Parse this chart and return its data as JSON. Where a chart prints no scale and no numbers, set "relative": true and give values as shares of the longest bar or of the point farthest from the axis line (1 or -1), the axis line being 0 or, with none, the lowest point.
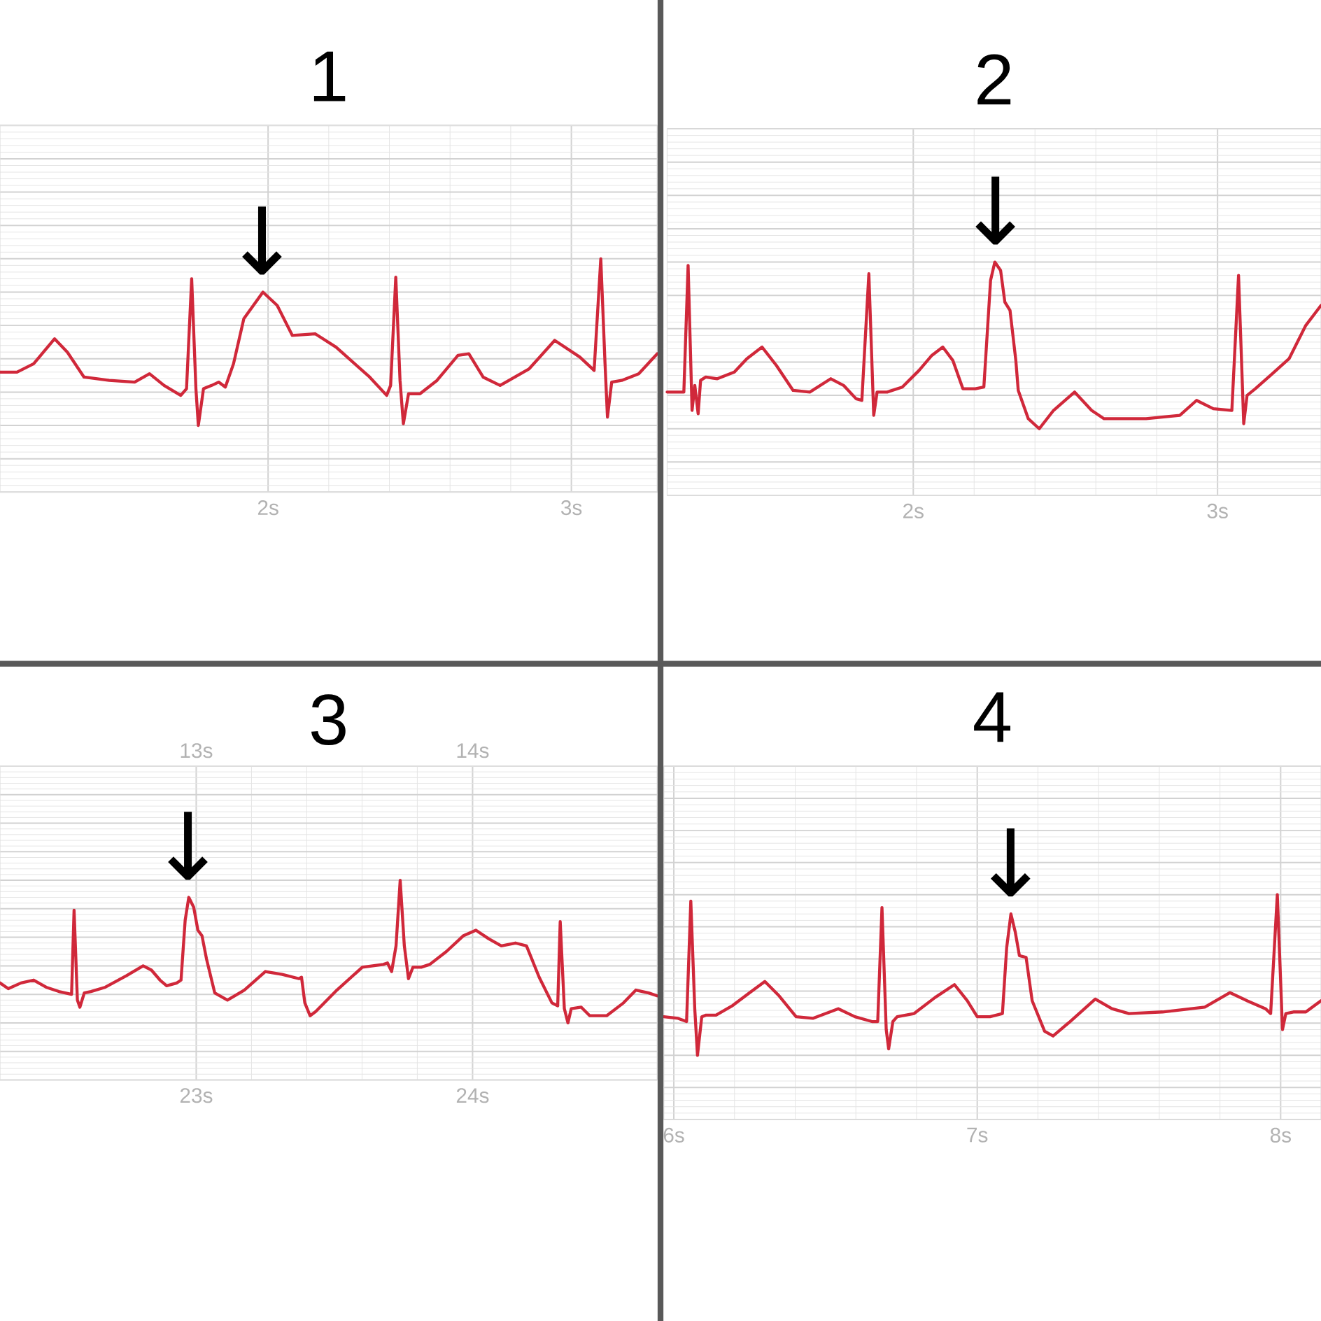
{
  "chart_data": [
    {
      "type": "line",
      "title": "1",
      "relative": true,
      "grid": true,
      "color": "#d0283a",
      "xlim": [
        1.116,
        3.283
      ],
      "xticks": [
        {
          "value": 2,
          "label": "2s"
        },
        {
          "value": 3,
          "label": "3s"
        }
      ],
      "annotations": [
        {
          "text": "↓",
          "x": 1.98,
          "y": 0.8
        }
      ],
      "x": [
        1.116,
        1.172,
        1.227,
        1.296,
        1.338,
        1.393,
        1.476,
        1.56,
        1.609,
        1.657,
        1.712,
        1.731,
        1.748,
        1.762,
        1.77,
        1.787,
        1.814,
        1.837,
        1.859,
        1.886,
        1.92,
        1.983,
        2.03,
        2.08,
        2.155,
        2.224,
        2.335,
        2.391,
        2.404,
        2.421,
        2.435,
        2.446,
        2.463,
        2.501,
        2.557,
        2.626,
        2.662,
        2.709,
        2.765,
        2.861,
        2.945,
        3.028,
        3.075,
        3.097,
        3.111,
        3.119,
        3.133,
        3.166,
        3.222,
        3.283
      ],
      "values": [
        0.32,
        0.32,
        0.37,
        0.52,
        0.44,
        0.29,
        0.27,
        0.26,
        0.31,
        0.24,
        0.18,
        0.22,
        0.88,
        0.22,
        0,
        0.22,
        0.24,
        0.26,
        0.23,
        0.37,
        0.64,
        0.8,
        0.72,
        0.54,
        0.55,
        0.47,
        0.29,
        0.18,
        0.24,
        0.89,
        0.27,
        0.01,
        0.19,
        0.19,
        0.27,
        0.42,
        0.43,
        0.29,
        0.24,
        0.34,
        0.51,
        0.41,
        0.33,
        1,
        0.37,
        0.05,
        0.26,
        0.27,
        0.31,
        0.43
      ]
    },
    {
      "type": "line",
      "title": "2",
      "relative": true,
      "grid": true,
      "color": "#d0283a",
      "xlim": [
        1.191,
        3.34
      ],
      "xticks": [
        {
          "value": 2,
          "label": "2s"
        },
        {
          "value": 3,
          "label": "3s"
        }
      ],
      "annotations": [
        {
          "text": "↓",
          "x": 2.27,
          "y": 1
        }
      ],
      "x": [
        1.191,
        1.232,
        1.246,
        1.26,
        1.273,
        1.282,
        1.293,
        1.301,
        1.318,
        1.356,
        1.412,
        1.453,
        1.503,
        1.55,
        1.605,
        1.66,
        1.729,
        1.771,
        1.812,
        1.831,
        1.854,
        1.87,
        1.881,
        1.914,
        1.964,
        2.019,
        2.061,
        2.097,
        2.13,
        2.163,
        2.204,
        2.232,
        2.254,
        2.268,
        2.287,
        2.301,
        2.318,
        2.337,
        2.345,
        2.378,
        2.414,
        2.461,
        2.53,
        2.586,
        2.627,
        2.765,
        2.876,
        2.931,
        2.986,
        3.047,
        3.069,
        3.086,
        3.097,
        3.124,
        3.18,
        3.235,
        3.29,
        3.34
      ],
      "values": [
        0.22,
        0.22,
        0.22,
        0.98,
        0.11,
        0.26,
        0.09,
        0.29,
        0.31,
        0.3,
        0.34,
        0.42,
        0.49,
        0.38,
        0.23,
        0.22,
        0.3,
        0.26,
        0.18,
        0.17,
        0.93,
        0.08,
        0.22,
        0.22,
        0.25,
        0.35,
        0.44,
        0.49,
        0.41,
        0.24,
        0.24,
        0.25,
        0.89,
        1,
        0.95,
        0.76,
        0.71,
        0.41,
        0.23,
        0.06,
        0,
        0.11,
        0.22,
        0.11,
        0.06,
        0.06,
        0.08,
        0.17,
        0.12,
        0.11,
        0.92,
        0.03,
        0.2,
        0.24,
        0.33,
        0.42,
        0.62,
        0.74
      ]
    },
    {
      "type": "line",
      "title": "3",
      "relative": true,
      "grid": true,
      "color": "#d0283a",
      "xlim": [
        22.29,
        24.668
      ],
      "xticks": [
        {
          "value": 23,
          "label": "23s"
        },
        {
          "value": 24,
          "label": "24s"
        }
      ],
      "x2lim": [
        12.29,
        14.668
      ],
      "x2ticks": [
        {
          "value": 13,
          "label": "13s"
        },
        {
          "value": 14,
          "label": "14s"
        }
      ],
      "annotations": [
        {
          "text": "↓",
          "x": 22.97,
          "y": 0.88
        }
      ],
      "x": [
        22.29,
        22.32,
        22.366,
        22.412,
        22.457,
        22.503,
        22.549,
        22.558,
        22.57,
        22.579,
        22.595,
        22.619,
        22.671,
        22.747,
        22.808,
        22.838,
        22.869,
        22.893,
        22.93,
        22.945,
        22.96,
        22.973,
        22.991,
        23.006,
        23.021,
        23.037,
        23.067,
        23.113,
        23.174,
        23.25,
        23.311,
        23.372,
        23.381,
        23.393,
        23.412,
        23.433,
        23.509,
        23.601,
        23.677,
        23.692,
        23.707,
        23.723,
        23.738,
        23.753,
        23.768,
        23.784,
        23.814,
        23.845,
        23.905,
        23.966,
        24.012,
        24.058,
        24.104,
        24.155,
        24.195,
        24.241,
        24.287,
        24.308,
        24.317,
        24.332,
        24.345,
        24.357,
        24.393,
        24.424,
        24.485,
        24.546,
        24.591,
        24.637,
        24.668
      ],
      "values": [
        0.28,
        0.24,
        0.28,
        0.3,
        0.25,
        0.22,
        0.2,
        0.79,
        0.16,
        0.11,
        0.21,
        0.22,
        0.25,
        0.33,
        0.4,
        0.37,
        0.3,
        0.26,
        0.28,
        0.3,
        0.72,
        0.88,
        0.81,
        0.65,
        0.61,
        0.45,
        0.21,
        0.16,
        0.23,
        0.36,
        0.34,
        0.31,
        0.32,
        0.14,
        0.05,
        0.08,
        0.23,
        0.39,
        0.41,
        0.42,
        0.36,
        0.54,
        1,
        0.54,
        0.31,
        0.39,
        0.39,
        0.41,
        0.5,
        0.61,
        0.65,
        0.59,
        0.54,
        0.56,
        0.54,
        0.32,
        0.14,
        0.12,
        0.71,
        0.1,
        0,
        0.1,
        0.11,
        0.05,
        0.05,
        0.14,
        0.23,
        0.21,
        0.19
      ]
    },
    {
      "type": "line",
      "title": "4",
      "relative": true,
      "grid": true,
      "color": "#d0283a",
      "xlim": [
        5.967,
        8.133
      ],
      "xticks": [
        {
          "value": 6,
          "label": "6s"
        },
        {
          "value": 7,
          "label": "7s"
        },
        {
          "value": 8,
          "label": "8s"
        }
      ],
      "annotations": [
        {
          "text": "↓",
          "x": 7.11,
          "y": 0.88
        }
      ],
      "x": [
        5.967,
        6.014,
        6.042,
        6.056,
        6.069,
        6.078,
        6.092,
        6.106,
        6.139,
        6.194,
        6.25,
        6.3,
        6.347,
        6.403,
        6.458,
        6.542,
        6.597,
        6.653,
        6.672,
        6.686,
        6.7,
        6.708,
        6.722,
        6.736,
        6.792,
        6.861,
        6.925,
        6.967,
        7.0,
        7.042,
        7.083,
        7.097,
        7.111,
        7.125,
        7.139,
        7.161,
        7.181,
        7.222,
        7.25,
        7.306,
        7.389,
        7.444,
        7.5,
        7.611,
        7.75,
        7.833,
        7.889,
        7.95,
        7.967,
        7.989,
        8.006,
        8.017,
        8.042,
        8.083,
        8.133
      ],
      "values": [
        0.24,
        0.23,
        0.21,
        0.96,
        0.29,
        0,
        0.24,
        0.25,
        0.25,
        0.31,
        0.39,
        0.46,
        0.37,
        0.24,
        0.23,
        0.29,
        0.24,
        0.21,
        0.21,
        0.92,
        0.16,
        0.04,
        0.21,
        0.24,
        0.26,
        0.36,
        0.44,
        0.34,
        0.24,
        0.24,
        0.26,
        0.67,
        0.88,
        0.77,
        0.62,
        0.61,
        0.34,
        0.15,
        0.12,
        0.21,
        0.35,
        0.29,
        0.26,
        0.27,
        0.3,
        0.39,
        0.34,
        0.29,
        0.26,
        1,
        0.16,
        0.26,
        0.27,
        0.27,
        0.34
      ]
    }
  ]
}
